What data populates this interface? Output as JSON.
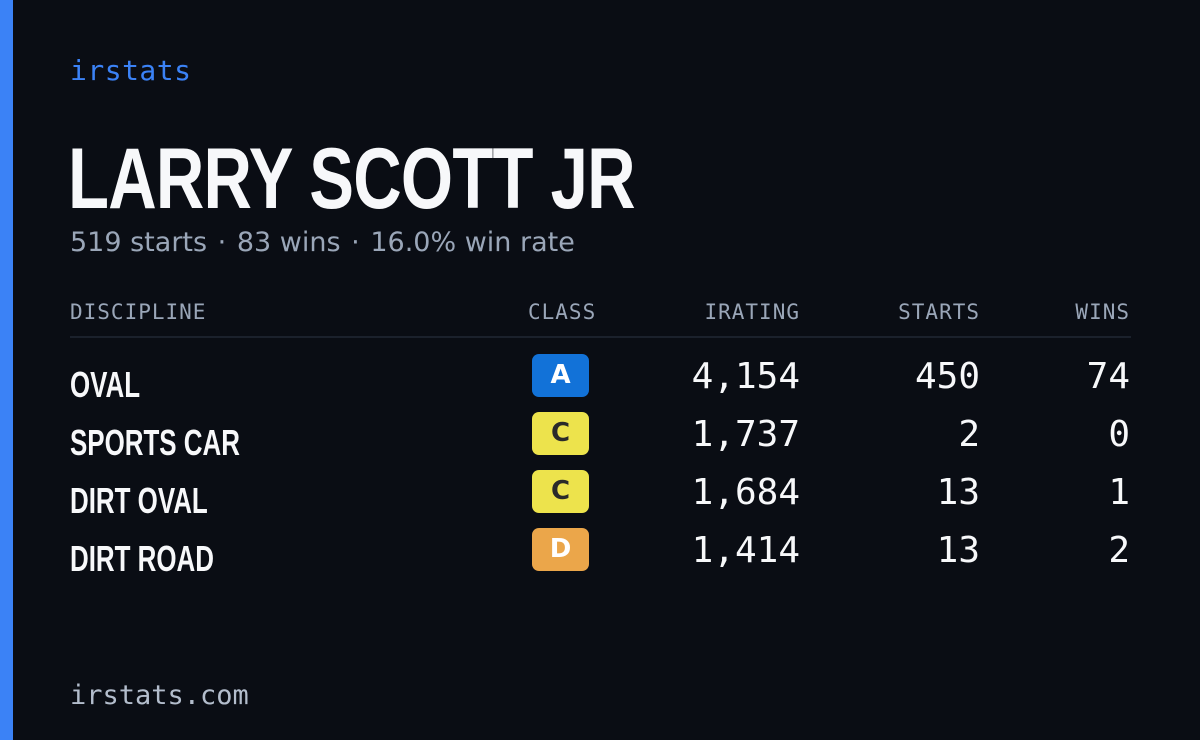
{
  "brand": "irstats",
  "driver": {
    "name": "LARRY SCOTT JR",
    "starts_text": "519 starts",
    "wins_text": "83 wins",
    "win_rate_text": "16.0% win rate",
    "separator": "·"
  },
  "table": {
    "headers": {
      "discipline": "DISCIPLINE",
      "class": "CLASS",
      "irating": "IRATING",
      "starts": "STARTS",
      "wins": "WINS"
    },
    "rows": [
      {
        "discipline": "OVAL",
        "class": "A",
        "class_bg": "#1272d8",
        "class_fg": "#ffffff",
        "irating": "4,154",
        "starts": "450",
        "wins": "74"
      },
      {
        "discipline": "SPORTS CAR",
        "class": "C",
        "class_bg": "#ede34c",
        "class_fg": "#2a2a2a",
        "irating": "1,737",
        "starts": "2",
        "wins": "0"
      },
      {
        "discipline": "DIRT OVAL",
        "class": "C",
        "class_bg": "#ede34c",
        "class_fg": "#2a2a2a",
        "irating": "1,684",
        "starts": "13",
        "wins": "1"
      },
      {
        "discipline": "DIRT ROAD",
        "class": "D",
        "class_bg": "#eba64a",
        "class_fg": "#ffffff",
        "irating": "1,414",
        "starts": "13",
        "wins": "2"
      }
    ]
  },
  "footer": "irstats.com",
  "colors": {
    "background": "#0a0d14",
    "accent": "#3b82f6",
    "text_primary": "#f7f8fa",
    "text_muted": "#9aa6b8"
  }
}
